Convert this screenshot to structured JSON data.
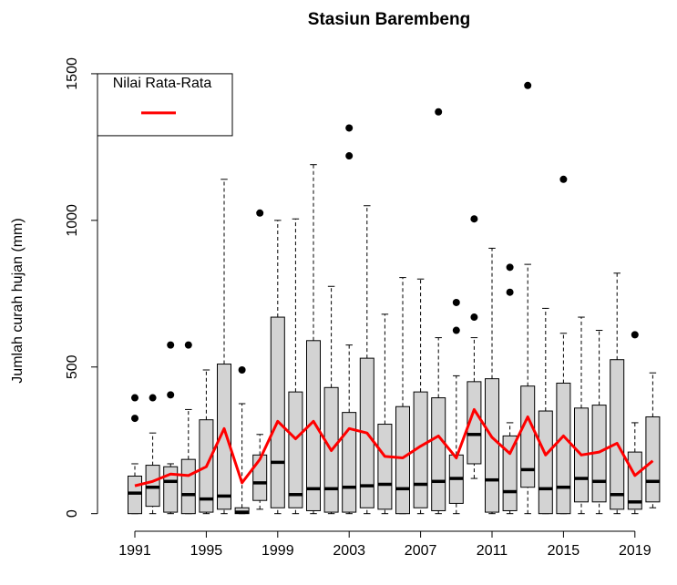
{
  "chart_data": {
    "type": "boxplot",
    "title": "Stasiun Barembeng",
    "y_label": "Jumlah curah hujan (mm)",
    "categories": [
      "1991",
      null,
      null,
      null,
      "1995",
      null,
      null,
      null,
      "1999",
      null,
      null,
      null,
      "2003",
      null,
      null,
      null,
      "2007",
      null,
      null,
      null,
      "2011",
      null,
      null,
      null,
      "2015",
      null,
      null,
      null,
      "2019",
      null
    ],
    "box_color": "#d3d3d3",
    "boxes": [
      {
        "min": 0,
        "q1": 0,
        "median": 70,
        "q3": 128,
        "max": 170,
        "outliers": [
          395,
          325
        ]
      },
      {
        "min": 0,
        "q1": 25,
        "median": 90,
        "q3": 165,
        "max": 275,
        "outliers": [
          395
        ]
      },
      {
        "min": 0,
        "q1": 5,
        "median": 110,
        "q3": 160,
        "max": 170,
        "outliers": [
          575,
          405
        ]
      },
      {
        "min": 0,
        "q1": 0,
        "median": 65,
        "q3": 185,
        "max": 355,
        "outliers": [
          575
        ]
      },
      {
        "min": 0,
        "q1": 5,
        "median": 50,
        "q3": 320,
        "max": 490,
        "outliers": []
      },
      {
        "min": 0,
        "q1": 15,
        "median": 60,
        "q3": 510,
        "max": 1140,
        "outliers": []
      },
      {
        "min": 0,
        "q1": 0,
        "median": 5,
        "q3": 20,
        "max": 375,
        "outliers": [
          490
        ]
      },
      {
        "min": 15,
        "q1": 45,
        "median": 105,
        "q3": 200,
        "max": 270,
        "outliers": [
          1025
        ]
      },
      {
        "min": 0,
        "q1": 20,
        "median": 175,
        "q3": 670,
        "max": 1000,
        "outliers": []
      },
      {
        "min": 0,
        "q1": 20,
        "median": 65,
        "q3": 415,
        "max": 1005,
        "outliers": []
      },
      {
        "min": 0,
        "q1": 10,
        "median": 85,
        "q3": 590,
        "max": 1190,
        "outliers": []
      },
      {
        "min": 0,
        "q1": 5,
        "median": 85,
        "q3": 430,
        "max": 775,
        "outliers": []
      },
      {
        "min": 0,
        "q1": 5,
        "median": 90,
        "q3": 345,
        "max": 575,
        "outliers": [
          1220,
          1315
        ]
      },
      {
        "min": 0,
        "q1": 20,
        "median": 95,
        "q3": 530,
        "max": 1050,
        "outliers": []
      },
      {
        "min": 0,
        "q1": 15,
        "median": 100,
        "q3": 305,
        "max": 680,
        "outliers": []
      },
      {
        "min": 0,
        "q1": 0,
        "median": 85,
        "q3": 365,
        "max": 805,
        "outliers": []
      },
      {
        "min": 0,
        "q1": 20,
        "median": 100,
        "q3": 415,
        "max": 800,
        "outliers": []
      },
      {
        "min": 0,
        "q1": 10,
        "median": 110,
        "q3": 395,
        "max": 600,
        "outliers": [
          1370
        ]
      },
      {
        "min": 0,
        "q1": 35,
        "median": 120,
        "q3": 200,
        "max": 470,
        "outliers": [
          720,
          625
        ]
      },
      {
        "min": 120,
        "q1": 170,
        "median": 270,
        "q3": 450,
        "max": 600,
        "outliers": [
          1005,
          670
        ]
      },
      {
        "min": 0,
        "q1": 5,
        "median": 115,
        "q3": 460,
        "max": 905,
        "outliers": []
      },
      {
        "min": 0,
        "q1": 10,
        "median": 75,
        "q3": 265,
        "max": 310,
        "outliers": [
          840,
          755
        ]
      },
      {
        "min": 0,
        "q1": 90,
        "median": 150,
        "q3": 435,
        "max": 850,
        "outliers": [
          1460
        ]
      },
      {
        "min": 0,
        "q1": 0,
        "median": 85,
        "q3": 350,
        "max": 700,
        "outliers": []
      },
      {
        "min": 0,
        "q1": 0,
        "median": 90,
        "q3": 445,
        "max": 615,
        "outliers": [
          1140
        ]
      },
      {
        "min": 0,
        "q1": 40,
        "median": 120,
        "q3": 360,
        "max": 670,
        "outliers": []
      },
      {
        "min": 0,
        "q1": 40,
        "median": 110,
        "q3": 370,
        "max": 625,
        "outliers": []
      },
      {
        "min": 0,
        "q1": 15,
        "median": 65,
        "q3": 525,
        "max": 820,
        "outliers": []
      },
      {
        "min": 0,
        "q1": 15,
        "median": 40,
        "q3": 210,
        "max": 310,
        "outliers": [
          610
        ]
      },
      {
        "min": 20,
        "q1": 40,
        "median": 110,
        "q3": 330,
        "max": 480,
        "outliers": []
      }
    ],
    "series": [
      {
        "name": "Nilai Rata-Rata",
        "color": "#ff0000",
        "values": [
          95,
          110,
          135,
          130,
          160,
          290,
          105,
          185,
          315,
          255,
          315,
          215,
          290,
          275,
          195,
          190,
          230,
          265,
          190,
          355,
          260,
          205,
          330,
          200,
          265,
          200,
          210,
          240,
          130,
          180
        ]
      }
    ],
    "ylim": [
      -60,
      1565
    ],
    "yticks": [
      0,
      500,
      1000,
      1500
    ],
    "legend": "top-left"
  }
}
